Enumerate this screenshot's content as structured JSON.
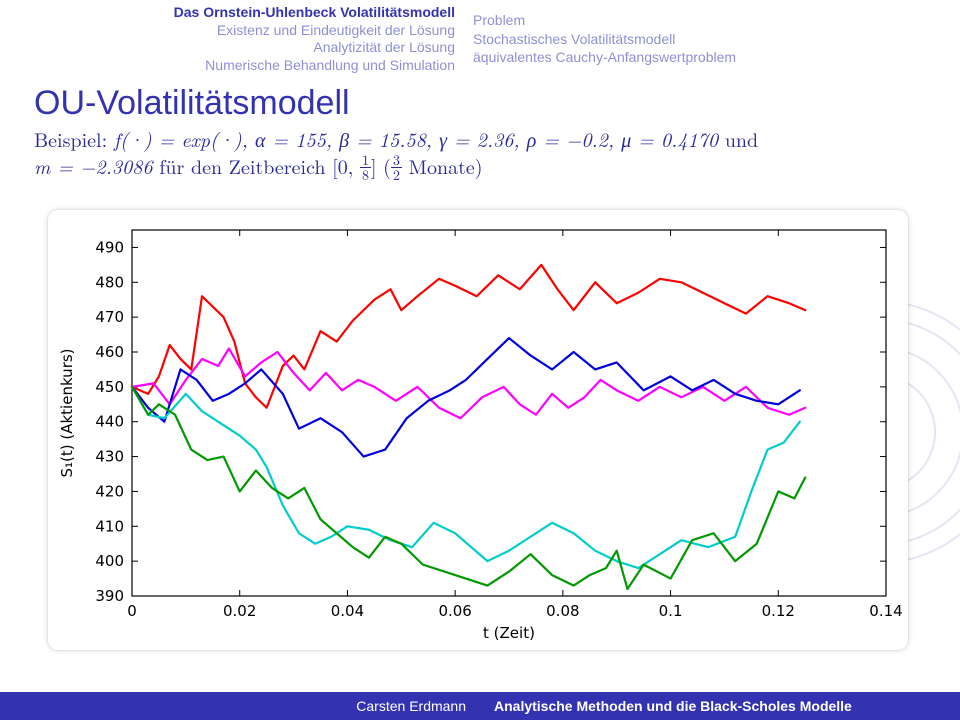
{
  "header": {
    "left": {
      "l1": "Das Ornstein-Uhlenbeck Volatilitätsmodell",
      "l2": "Existenz und Eindeutigkeit der Lösung",
      "l3": "Analytizität der Lösung",
      "l4": "Numerische Behandlung und Simulation"
    },
    "right": {
      "l1": "Problem",
      "l2": "Stochastisches Volatilitätsmodell",
      "l3": "äquivalentes Cauchy-Anfangswertproblem"
    }
  },
  "title": "OU-Volatilitätsmodell",
  "subtitle": {
    "line1_prefix": "Beispiel: ",
    "line1_math": "f(·) = exp(·), α = 155, β = 15.58, γ = 2.36, ρ = −0.2, μ = 0.4170",
    "line1_suffix": " und",
    "line2_prefix": "m = −2.3086",
    "line2_text": " für den Zeitbereich [0, ",
    "frac1_n": "1",
    "frac1_d": "8",
    "line2_mid": "] (",
    "frac2_n": "3",
    "frac2_d": "2",
    "line2_suffix": " Monate)"
  },
  "footer": {
    "left": "Carsten Erdmann",
    "right": "Analytische Methoden und die Black-Scholes Modelle"
  },
  "chart": {
    "type": "line",
    "xlabel": "t (Zeit)",
    "ylabel": "S₁(t) (Aktienkurs)",
    "xlim": [
      0,
      0.14
    ],
    "ylim": [
      390,
      495
    ],
    "xticks": [
      0,
      0.02,
      0.04,
      0.06,
      0.08,
      0.1,
      0.12,
      0.14
    ],
    "yticks": [
      390,
      400,
      410,
      420,
      430,
      440,
      450,
      460,
      470,
      480,
      490
    ],
    "tick_fontsize": 15,
    "label_fontsize": 15,
    "background_color": "#ffffff",
    "axis_color": "#000000",
    "line_width": 2.2,
    "box": true,
    "series": [
      {
        "name": "red",
        "color": "#ff0000",
        "points": [
          [
            0,
            450
          ],
          [
            0.003,
            448
          ],
          [
            0.005,
            453
          ],
          [
            0.007,
            462
          ],
          [
            0.009,
            458
          ],
          [
            0.011,
            455
          ],
          [
            0.013,
            476
          ],
          [
            0.015,
            473
          ],
          [
            0.017,
            470
          ],
          [
            0.019,
            463
          ],
          [
            0.021,
            451
          ],
          [
            0.023,
            447
          ],
          [
            0.025,
            444
          ],
          [
            0.028,
            456
          ],
          [
            0.03,
            459
          ],
          [
            0.032,
            455
          ],
          [
            0.035,
            466
          ],
          [
            0.038,
            463
          ],
          [
            0.041,
            469
          ],
          [
            0.045,
            475
          ],
          [
            0.048,
            478
          ],
          [
            0.05,
            472
          ],
          [
            0.053,
            476
          ],
          [
            0.057,
            481
          ],
          [
            0.06,
            479
          ],
          [
            0.064,
            476
          ],
          [
            0.068,
            482
          ],
          [
            0.072,
            478
          ],
          [
            0.076,
            485
          ],
          [
            0.079,
            478
          ],
          [
            0.082,
            472
          ],
          [
            0.086,
            480
          ],
          [
            0.09,
            474
          ],
          [
            0.094,
            477
          ],
          [
            0.098,
            481
          ],
          [
            0.102,
            480
          ],
          [
            0.106,
            477
          ],
          [
            0.11,
            474
          ],
          [
            0.114,
            471
          ],
          [
            0.118,
            476
          ],
          [
            0.122,
            474
          ],
          [
            0.125,
            472
          ]
        ]
      },
      {
        "name": "magenta",
        "color": "#ff00ff",
        "points": [
          [
            0,
            450
          ],
          [
            0.004,
            451
          ],
          [
            0.007,
            445
          ],
          [
            0.01,
            452
          ],
          [
            0.013,
            458
          ],
          [
            0.016,
            456
          ],
          [
            0.018,
            461
          ],
          [
            0.021,
            453
          ],
          [
            0.024,
            457
          ],
          [
            0.027,
            460
          ],
          [
            0.03,
            454
          ],
          [
            0.033,
            449
          ],
          [
            0.036,
            454
          ],
          [
            0.039,
            449
          ],
          [
            0.042,
            452
          ],
          [
            0.045,
            450
          ],
          [
            0.049,
            446
          ],
          [
            0.053,
            450
          ],
          [
            0.057,
            444
          ],
          [
            0.061,
            441
          ],
          [
            0.065,
            447
          ],
          [
            0.069,
            450
          ],
          [
            0.072,
            445
          ],
          [
            0.075,
            442
          ],
          [
            0.078,
            448
          ],
          [
            0.081,
            444
          ],
          [
            0.084,
            447
          ],
          [
            0.087,
            452
          ],
          [
            0.09,
            449
          ],
          [
            0.094,
            446
          ],
          [
            0.098,
            450
          ],
          [
            0.102,
            447
          ],
          [
            0.106,
            450
          ],
          [
            0.11,
            446
          ],
          [
            0.114,
            450
          ],
          [
            0.118,
            444
          ],
          [
            0.122,
            442
          ],
          [
            0.125,
            444
          ]
        ]
      },
      {
        "name": "blue",
        "color": "#0000dd",
        "points": [
          [
            0,
            450
          ],
          [
            0.003,
            444
          ],
          [
            0.006,
            440
          ],
          [
            0.009,
            455
          ],
          [
            0.012,
            452
          ],
          [
            0.015,
            446
          ],
          [
            0.018,
            448
          ],
          [
            0.021,
            451
          ],
          [
            0.024,
            455
          ],
          [
            0.028,
            448
          ],
          [
            0.031,
            438
          ],
          [
            0.035,
            441
          ],
          [
            0.039,
            437
          ],
          [
            0.043,
            430
          ],
          [
            0.047,
            432
          ],
          [
            0.051,
            441
          ],
          [
            0.055,
            446
          ],
          [
            0.059,
            449
          ],
          [
            0.062,
            452
          ],
          [
            0.066,
            458
          ],
          [
            0.07,
            464
          ],
          [
            0.074,
            459
          ],
          [
            0.078,
            455
          ],
          [
            0.082,
            460
          ],
          [
            0.086,
            455
          ],
          [
            0.09,
            457
          ],
          [
            0.095,
            449
          ],
          [
            0.1,
            453
          ],
          [
            0.104,
            449
          ],
          [
            0.108,
            452
          ],
          [
            0.112,
            448
          ],
          [
            0.116,
            446
          ],
          [
            0.12,
            445
          ],
          [
            0.124,
            449
          ]
        ]
      },
      {
        "name": "cyan",
        "color": "#00cccc",
        "points": [
          [
            0,
            450
          ],
          [
            0.003,
            442
          ],
          [
            0.006,
            441
          ],
          [
            0.01,
            448
          ],
          [
            0.013,
            443
          ],
          [
            0.016,
            440
          ],
          [
            0.02,
            436
          ],
          [
            0.023,
            432
          ],
          [
            0.025,
            427
          ],
          [
            0.028,
            416
          ],
          [
            0.031,
            408
          ],
          [
            0.034,
            405
          ],
          [
            0.037,
            407
          ],
          [
            0.04,
            410
          ],
          [
            0.044,
            409
          ],
          [
            0.048,
            406
          ],
          [
            0.052,
            404
          ],
          [
            0.056,
            411
          ],
          [
            0.06,
            408
          ],
          [
            0.063,
            404
          ],
          [
            0.066,
            400
          ],
          [
            0.07,
            403
          ],
          [
            0.074,
            407
          ],
          [
            0.078,
            411
          ],
          [
            0.082,
            408
          ],
          [
            0.086,
            403
          ],
          [
            0.09,
            400
          ],
          [
            0.094,
            398
          ],
          [
            0.098,
            402
          ],
          [
            0.102,
            406
          ],
          [
            0.107,
            404
          ],
          [
            0.112,
            407
          ],
          [
            0.115,
            420
          ],
          [
            0.118,
            432
          ],
          [
            0.121,
            434
          ],
          [
            0.124,
            440
          ]
        ]
      },
      {
        "name": "green",
        "color": "#009900",
        "points": [
          [
            0,
            450
          ],
          [
            0.003,
            442
          ],
          [
            0.005,
            445
          ],
          [
            0.008,
            442
          ],
          [
            0.011,
            432
          ],
          [
            0.014,
            429
          ],
          [
            0.017,
            430
          ],
          [
            0.02,
            420
          ],
          [
            0.023,
            426
          ],
          [
            0.026,
            421
          ],
          [
            0.029,
            418
          ],
          [
            0.032,
            421
          ],
          [
            0.035,
            412
          ],
          [
            0.038,
            408
          ],
          [
            0.041,
            404
          ],
          [
            0.044,
            401
          ],
          [
            0.047,
            407
          ],
          [
            0.05,
            405
          ],
          [
            0.054,
            399
          ],
          [
            0.058,
            397
          ],
          [
            0.062,
            395
          ],
          [
            0.066,
            393
          ],
          [
            0.07,
            397
          ],
          [
            0.074,
            402
          ],
          [
            0.078,
            396
          ],
          [
            0.082,
            393
          ],
          [
            0.085,
            396
          ],
          [
            0.088,
            398
          ],
          [
            0.09,
            403
          ],
          [
            0.092,
            392
          ],
          [
            0.095,
            399
          ],
          [
            0.1,
            395
          ],
          [
            0.104,
            406
          ],
          [
            0.108,
            408
          ],
          [
            0.112,
            400
          ],
          [
            0.116,
            405
          ],
          [
            0.12,
            420
          ],
          [
            0.123,
            418
          ],
          [
            0.125,
            424
          ]
        ]
      }
    ]
  }
}
